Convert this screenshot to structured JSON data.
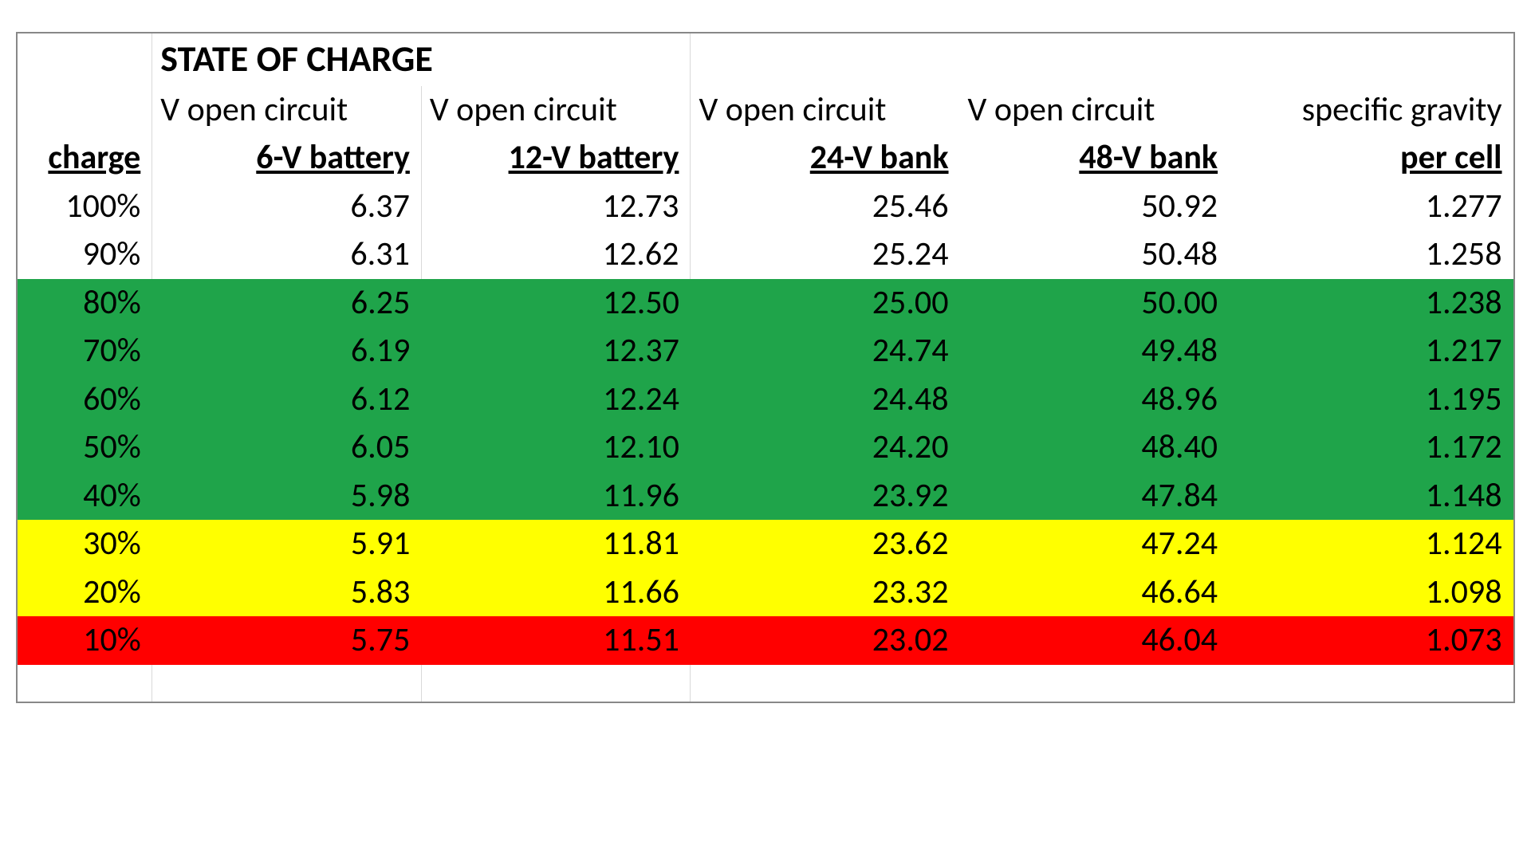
{
  "table": {
    "type": "table",
    "title": "STATE OF CHARGE",
    "font_family": "Calibri",
    "title_fontsize": 46,
    "header_fontsize": 42,
    "cell_fontsize": 42,
    "text_color": "#000000",
    "border_color": "#888888",
    "gridline_color": "#d9d9d9",
    "background_color": "#ffffff",
    "row_band_colors": {
      "white": "#ffffff",
      "green": "#1fa44a",
      "yellow": "#ffff00",
      "red": "#ff0000"
    },
    "column_widths_pct": [
      9,
      18,
      18,
      18,
      18,
      19
    ],
    "header_row1": [
      "",
      "V open circuit",
      "V open circuit",
      "V open circuit",
      "V open circuit",
      "specific gravity"
    ],
    "header_row2": [
      "charge",
      "6-V battery",
      "12-V battery",
      "24-V bank",
      "48-V bank",
      "per cell"
    ],
    "columns": [
      "charge",
      "6V",
      "12V",
      "24V",
      "48V",
      "sg"
    ],
    "rows": [
      {
        "band": "white",
        "cells": [
          "100%",
          "6.37",
          "12.73",
          "25.46",
          "50.92",
          "1.277"
        ]
      },
      {
        "band": "white",
        "cells": [
          "90%",
          "6.31",
          "12.62",
          "25.24",
          "50.48",
          "1.258"
        ]
      },
      {
        "band": "green",
        "cells": [
          "80%",
          "6.25",
          "12.50",
          "25.00",
          "50.00",
          "1.238"
        ]
      },
      {
        "band": "green",
        "cells": [
          "70%",
          "6.19",
          "12.37",
          "24.74",
          "49.48",
          "1.217"
        ]
      },
      {
        "band": "green",
        "cells": [
          "60%",
          "6.12",
          "12.24",
          "24.48",
          "48.96",
          "1.195"
        ]
      },
      {
        "band": "green",
        "cells": [
          "50%",
          "6.05",
          "12.10",
          "24.20",
          "48.40",
          "1.172"
        ]
      },
      {
        "band": "green",
        "cells": [
          "40%",
          "5.98",
          "11.96",
          "23.92",
          "47.84",
          "1.148"
        ]
      },
      {
        "band": "yellow",
        "cells": [
          "30%",
          "5.91",
          "11.81",
          "23.62",
          "47.24",
          "1.124"
        ]
      },
      {
        "band": "yellow",
        "cells": [
          "20%",
          "5.83",
          "11.66",
          "23.32",
          "46.64",
          "1.098"
        ]
      },
      {
        "band": "red",
        "cells": [
          "10%",
          "5.75",
          "11.51",
          "23.02",
          "46.04",
          "1.073"
        ]
      }
    ]
  }
}
